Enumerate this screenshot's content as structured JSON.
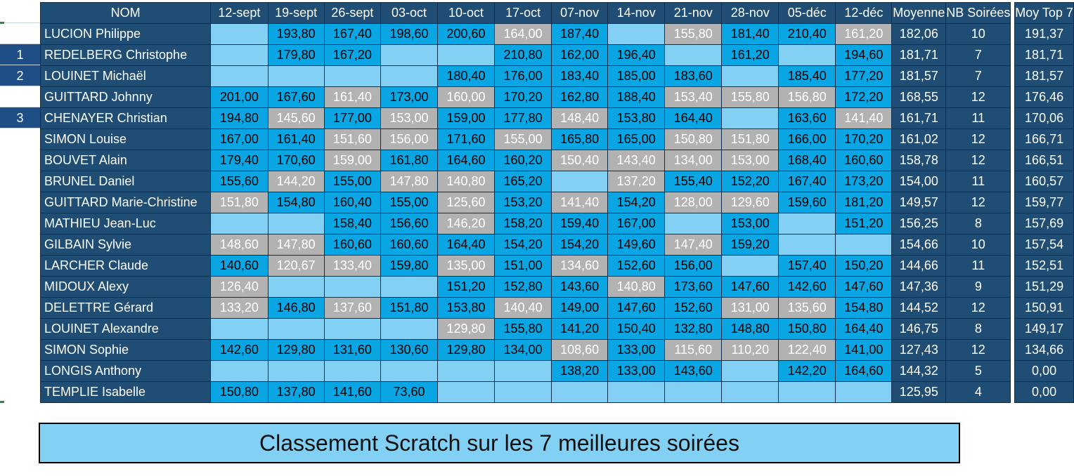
{
  "sheet": {
    "header": {
      "name": "NOM",
      "dates": [
        "12-sept",
        "19-sept",
        "26-sept",
        "03-oct",
        "10-oct",
        "17-oct",
        "07-nov",
        "14-nov",
        "21-nov",
        "28-nov",
        "05-déc",
        "12-déc"
      ],
      "average": "Moyenne",
      "nights": "NB Soirées",
      "top": "Moy Top 7"
    },
    "podium": [
      "1",
      "2",
      "3"
    ],
    "rows": [
      {
        "name": "LUCION Philippe",
        "scores": [
          "",
          "193,80",
          "167,40",
          "198,60",
          "200,60",
          "164,00",
          "187,40",
          "",
          "155,80",
          "181,40",
          "210,40",
          "161,20"
        ],
        "dropped": [
          5,
          8,
          11
        ],
        "average": "182,06",
        "nights": "10",
        "top": "191,37"
      },
      {
        "name": "REDELBERG Christophe",
        "scores": [
          "",
          "179,80",
          "167,20",
          "",
          "",
          "210,80",
          "162,00",
          "196,40",
          "",
          "161,20",
          "",
          "194,60"
        ],
        "dropped": [],
        "average": "181,71",
        "nights": "7",
        "top": "181,71"
      },
      {
        "name": "LOUINET Michaël",
        "scores": [
          "",
          "",
          "",
          "",
          "180,40",
          "176,00",
          "183,40",
          "185,00",
          "183,60",
          "",
          "185,40",
          "177,20"
        ],
        "dropped": [],
        "average": "181,57",
        "nights": "7",
        "top": "181,57"
      },
      {
        "name": "GUITTARD Johnny",
        "scores": [
          "201,00",
          "167,60",
          "161,40",
          "173,00",
          "160,00",
          "170,20",
          "162,80",
          "188,40",
          "153,40",
          "155,80",
          "156,80",
          "172,20"
        ],
        "dropped": [
          2,
          4,
          8,
          9,
          10
        ],
        "average": "168,55",
        "nights": "12",
        "top": "176,46"
      },
      {
        "name": "CHENAYER Christian",
        "scores": [
          "194,80",
          "145,60",
          "177,00",
          "153,00",
          "159,00",
          "177,80",
          "148,40",
          "153,80",
          "164,40",
          "",
          "163,60",
          "141,40"
        ],
        "dropped": [
          1,
          3,
          6,
          11
        ],
        "average": "161,71",
        "nights": "11",
        "top": "170,06"
      },
      {
        "name": "SIMON Louise",
        "scores": [
          "167,00",
          "161,40",
          "151,60",
          "156,00",
          "171,60",
          "155,00",
          "165,80",
          "165,00",
          "150,80",
          "151,80",
          "166,00",
          "170,20"
        ],
        "dropped": [
          2,
          3,
          5,
          8,
          9
        ],
        "average": "161,02",
        "nights": "12",
        "top": "166,71"
      },
      {
        "name": "BOUVET Alain",
        "scores": [
          "179,40",
          "170,60",
          "159,00",
          "161,80",
          "164,60",
          "160,20",
          "150,40",
          "143,40",
          "134,00",
          "153,00",
          "168,40",
          "160,60"
        ],
        "dropped": [
          2,
          6,
          7,
          8,
          9
        ],
        "average": "158,78",
        "nights": "12",
        "top": "166,51"
      },
      {
        "name": "BRUNEL Daniel",
        "scores": [
          "155,60",
          "144,20",
          "155,00",
          "147,80",
          "140,80",
          "165,20",
          "",
          "137,20",
          "155,40",
          "152,20",
          "167,40",
          "173,20"
        ],
        "dropped": [
          1,
          3,
          4,
          7
        ],
        "average": "154,00",
        "nights": "11",
        "top": "160,57"
      },
      {
        "name": "GUITTARD Marie-Christine",
        "scores": [
          "151,80",
          "154,80",
          "160,40",
          "155,00",
          "125,60",
          "153,20",
          "141,40",
          "154,20",
          "128,00",
          "129,60",
          "159,60",
          "181,20"
        ],
        "dropped": [
          0,
          4,
          6,
          8,
          9
        ],
        "average": "149,57",
        "nights": "12",
        "top": "159,77"
      },
      {
        "name": "MATHIEU Jean-Luc",
        "scores": [
          "",
          "",
          "158,40",
          "156,60",
          "146,20",
          "158,20",
          "159,40",
          "167,00",
          "",
          "153,00",
          "",
          "151,20"
        ],
        "dropped": [
          4
        ],
        "average": "156,25",
        "nights": "8",
        "top": "157,69"
      },
      {
        "name": "GILBAIN Sylvie",
        "scores": [
          "148,60",
          "147,80",
          "160,60",
          "160,60",
          "164,40",
          "154,20",
          "154,20",
          "149,60",
          "147,40",
          "159,20",
          "",
          ""
        ],
        "dropped": [
          0,
          1,
          8
        ],
        "average": "154,66",
        "nights": "10",
        "top": "157,54"
      },
      {
        "name": "LARCHER Claude",
        "scores": [
          "140,60",
          "120,67",
          "133,40",
          "159,80",
          "135,00",
          "151,00",
          "134,60",
          "152,60",
          "156,00",
          "",
          "157,40",
          "150,20"
        ],
        "dropped": [
          1,
          2,
          4,
          6
        ],
        "average": "144,66",
        "nights": "11",
        "top": "152,51"
      },
      {
        "name": "MIDOUX Alexy",
        "scores": [
          "126,40",
          "",
          "",
          "",
          "151,20",
          "152,80",
          "143,60",
          "140,80",
          "173,60",
          "147,60",
          "142,60",
          "147,60"
        ],
        "dropped": [
          0,
          7
        ],
        "average": "147,36",
        "nights": "9",
        "top": "151,29"
      },
      {
        "name": "DELETTRE Gérard",
        "scores": [
          "133,20",
          "146,80",
          "137,60",
          "151,80",
          "153,80",
          "140,40",
          "149,00",
          "147,60",
          "152,60",
          "131,00",
          "135,60",
          "154,80"
        ],
        "dropped": [
          0,
          2,
          5,
          9,
          10
        ],
        "average": "144,52",
        "nights": "12",
        "top": "150,91"
      },
      {
        "name": "LOUINET Alexandre",
        "scores": [
          "",
          "",
          "",
          "",
          "129,80",
          "155,80",
          "141,20",
          "150,40",
          "132,80",
          "148,80",
          "150,80",
          "164,40"
        ],
        "dropped": [
          4
        ],
        "average": "146,75",
        "nights": "8",
        "top": "149,17"
      },
      {
        "name": "SIMON Sophie",
        "scores": [
          "142,60",
          "129,80",
          "131,60",
          "130,60",
          "129,80",
          "134,00",
          "108,60",
          "133,00",
          "115,60",
          "110,20",
          "122,40",
          "141,00"
        ],
        "dropped": [
          6,
          8,
          9,
          10
        ],
        "average": "127,43",
        "nights": "12",
        "top": "134,66"
      },
      {
        "name": "LONGIS Anthony",
        "scores": [
          "",
          "",
          "",
          "",
          "",
          "",
          "138,20",
          "133,00",
          "143,60",
          "",
          "142,20",
          "164,60"
        ],
        "dropped": [],
        "average": "144,32",
        "nights": "5",
        "top": "0,00"
      },
      {
        "name": "TEMPLIE Isabelle",
        "scores": [
          "150,80",
          "137,80",
          "141,60",
          "73,60",
          "",
          "",
          "",
          "",
          "",
          "",
          "",
          ""
        ],
        "dropped": [],
        "average": "125,95",
        "nights": "4",
        "top": "0,00"
      }
    ],
    "footer": "Classement Scratch sur les 7 meilleures soirées"
  },
  "colors": {
    "header_bg": "#1f4d73",
    "score_played": "#0aa6e3",
    "score_empty": "#82d0f3",
    "score_dropped": "#b2b2b2",
    "rank_bg": "#1f4d86"
  }
}
